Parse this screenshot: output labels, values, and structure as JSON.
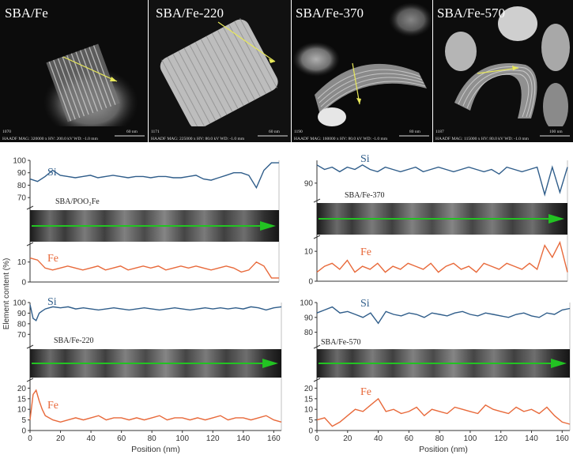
{
  "colors": {
    "si": "#2f5d8a",
    "fe": "#e8693a",
    "arrow": "#22c322",
    "scan": "#e8e85a",
    "axis": "#333333"
  },
  "tem_panels": [
    {
      "label": "SBA/Fe",
      "info_id": "1070",
      "info": "HAADF  MAG: 320000 x  HV: 200.0 kV  WD: -1.0 mm",
      "scale": "60 nm"
    },
    {
      "label": "SBA/Fe-220",
      "info_id": "1171",
      "info": "HAADF  MAG: 225000 x  HV: 80.0 kV  WD: -1.0 mm",
      "scale": "60 nm"
    },
    {
      "label": "SBA/Fe-370",
      "info_id": "1190",
      "info": "HAADF  MAG: 160000 x  HV: 80.0 kV  WD: -1.0 mm",
      "scale": "80 nm"
    },
    {
      "label": "SBA/Fe-570",
      "info_id": "1187",
      "info": "HAADF  MAG: 115000 x  HV: 80.0 kV  WD: -1.0 mm",
      "scale": "100 nm"
    }
  ],
  "y_axis_label": "Element content (%)",
  "chart_data": [
    {
      "type": "line",
      "title": "SBA/POO₂Fe",
      "xlabel": "",
      "xlim": [
        0,
        165
      ],
      "xticks": [],
      "si_label": "Si",
      "fe_label": "Fe",
      "si_ylim": [
        65,
        100
      ],
      "si_yticks": [
        70,
        80,
        90,
        100
      ],
      "fe_ylim": [
        0,
        17
      ],
      "fe_yticks": [
        0,
        10
      ],
      "series": [
        {
          "name": "Si",
          "x": [
            0,
            5,
            10,
            15,
            20,
            25,
            30,
            35,
            40,
            45,
            50,
            55,
            60,
            65,
            70,
            75,
            80,
            85,
            90,
            95,
            100,
            105,
            110,
            115,
            120,
            125,
            130,
            135,
            140,
            145,
            150,
            155,
            160,
            165
          ],
          "values": [
            85,
            83,
            87,
            92,
            88,
            87,
            86,
            87,
            88,
            86,
            87,
            88,
            87,
            86,
            87,
            87,
            86,
            87,
            87,
            86,
            86,
            87,
            88,
            85,
            84,
            86,
            88,
            90,
            90,
            88,
            78,
            92,
            98,
            98
          ]
        },
        {
          "name": "Fe",
          "x": [
            0,
            5,
            10,
            15,
            20,
            25,
            30,
            35,
            40,
            45,
            50,
            55,
            60,
            65,
            70,
            75,
            80,
            85,
            90,
            95,
            100,
            105,
            110,
            115,
            120,
            125,
            130,
            135,
            140,
            145,
            150,
            155,
            160,
            165
          ],
          "values": [
            12,
            11,
            7,
            6,
            7,
            8,
            7,
            6,
            7,
            8,
            6,
            7,
            8,
            6,
            7,
            8,
            7,
            8,
            6,
            7,
            8,
            7,
            8,
            7,
            6,
            7,
            8,
            7,
            5,
            6,
            10,
            8,
            2,
            2
          ]
        }
      ]
    },
    {
      "type": "line",
      "title": "SBA/Fe-370",
      "xlabel": "",
      "xlim": [
        0,
        165
      ],
      "xticks": [],
      "si_label": "Si",
      "fe_label": "Fe",
      "si_ylim": [
        83,
        100
      ],
      "si_yticks": [
        90
      ],
      "fe_ylim": [
        0,
        14
      ],
      "fe_yticks": [
        0,
        10
      ],
      "series": [
        {
          "name": "Si",
          "x": [
            0,
            5,
            10,
            15,
            20,
            25,
            30,
            35,
            40,
            45,
            50,
            55,
            60,
            65,
            70,
            75,
            80,
            85,
            90,
            95,
            100,
            105,
            110,
            115,
            120,
            125,
            130,
            135,
            140,
            145,
            150,
            155,
            160,
            165
          ],
          "values": [
            98,
            96,
            97,
            95,
            97,
            96,
            98,
            96,
            95,
            97,
            96,
            95,
            96,
            97,
            95,
            96,
            97,
            96,
            95,
            96,
            97,
            96,
            95,
            96,
            94,
            97,
            96,
            95,
            96,
            97,
            85,
            97,
            86,
            97
          ]
        },
        {
          "name": "Fe",
          "x": [
            0,
            5,
            10,
            15,
            20,
            25,
            30,
            35,
            40,
            45,
            50,
            55,
            60,
            65,
            70,
            75,
            80,
            85,
            90,
            95,
            100,
            105,
            110,
            115,
            120,
            125,
            130,
            135,
            140,
            145,
            150,
            155,
            160,
            165
          ],
          "values": [
            3,
            5,
            6,
            4,
            7,
            3,
            5,
            4,
            6,
            3,
            5,
            4,
            6,
            5,
            4,
            6,
            3,
            5,
            6,
            4,
            5,
            3,
            6,
            5,
            4,
            6,
            5,
            4,
            6,
            4,
            12,
            8,
            13,
            3
          ]
        }
      ]
    },
    {
      "type": "line",
      "title": "SBA/Fe-220",
      "xlabel": "Position (nm)",
      "xlim": [
        0,
        165
      ],
      "xticks": [
        0,
        20,
        40,
        60,
        80,
        100,
        120,
        140,
        160
      ],
      "si_label": "Si",
      "fe_label": "Fe",
      "si_ylim": [
        65,
        100
      ],
      "si_yticks": [
        70,
        80,
        90,
        100
      ],
      "fe_ylim": [
        0,
        22
      ],
      "fe_yticks": [
        0,
        5,
        10,
        15,
        20
      ],
      "series": [
        {
          "name": "Si",
          "x": [
            0,
            2,
            4,
            6,
            8,
            10,
            15,
            20,
            25,
            30,
            35,
            40,
            45,
            50,
            55,
            60,
            65,
            70,
            75,
            80,
            85,
            90,
            95,
            100,
            105,
            110,
            115,
            120,
            125,
            130,
            135,
            140,
            145,
            150,
            155,
            160,
            165
          ],
          "values": [
            98,
            85,
            83,
            90,
            92,
            94,
            96,
            95,
            96,
            94,
            95,
            94,
            93,
            94,
            95,
            94,
            93,
            94,
            95,
            94,
            93,
            94,
            95,
            94,
            93,
            94,
            95,
            94,
            95,
            94,
            95,
            94,
            96,
            95,
            93,
            95,
            96
          ]
        },
        {
          "name": "Fe",
          "x": [
            0,
            2,
            4,
            6,
            8,
            10,
            15,
            20,
            25,
            30,
            35,
            40,
            45,
            50,
            55,
            60,
            65,
            70,
            75,
            80,
            85,
            90,
            95,
            100,
            105,
            110,
            115,
            120,
            125,
            130,
            135,
            140,
            145,
            150,
            155,
            160,
            165
          ],
          "values": [
            5,
            17,
            19,
            14,
            10,
            7,
            5,
            4,
            5,
            6,
            5,
            6,
            7,
            5,
            6,
            6,
            5,
            6,
            5,
            6,
            7,
            5,
            6,
            6,
            5,
            6,
            5,
            6,
            7,
            5,
            6,
            6,
            5,
            6,
            7,
            5,
            4
          ]
        }
      ]
    },
    {
      "type": "line",
      "title": "SBA/Fe-570",
      "xlabel": "Position (nm)",
      "xlim": [
        0,
        165
      ],
      "xticks": [
        0,
        20,
        40,
        60,
        80,
        100,
        120,
        140,
        160
      ],
      "si_label": "Si",
      "fe_label": "Fe",
      "si_ylim": [
        75,
        100
      ],
      "si_yticks": [
        80,
        90,
        100
      ],
      "fe_ylim": [
        0,
        22
      ],
      "fe_yticks": [
        0,
        5,
        10,
        15,
        20
      ],
      "series": [
        {
          "name": "Si",
          "x": [
            0,
            5,
            10,
            15,
            20,
            25,
            30,
            35,
            40,
            45,
            50,
            55,
            60,
            65,
            70,
            75,
            80,
            85,
            90,
            95,
            100,
            105,
            110,
            115,
            120,
            125,
            130,
            135,
            140,
            145,
            150,
            155,
            160,
            165
          ],
          "values": [
            93,
            95,
            97,
            93,
            94,
            92,
            90,
            93,
            86,
            94,
            92,
            91,
            93,
            92,
            90,
            93,
            92,
            91,
            93,
            94,
            92,
            91,
            93,
            92,
            91,
            90,
            92,
            93,
            91,
            90,
            93,
            92,
            95,
            96
          ]
        },
        {
          "name": "Fe",
          "x": [
            0,
            5,
            10,
            15,
            20,
            25,
            30,
            35,
            40,
            45,
            50,
            55,
            60,
            65,
            70,
            75,
            80,
            85,
            90,
            95,
            100,
            105,
            110,
            115,
            120,
            125,
            130,
            135,
            140,
            145,
            150,
            155,
            160,
            165
          ],
          "values": [
            5,
            6,
            2,
            4,
            7,
            10,
            9,
            12,
            15,
            9,
            10,
            8,
            9,
            11,
            7,
            10,
            9,
            8,
            11,
            10,
            9,
            8,
            12,
            10,
            9,
            8,
            11,
            9,
            10,
            8,
            11,
            7,
            4,
            3
          ]
        }
      ]
    }
  ]
}
